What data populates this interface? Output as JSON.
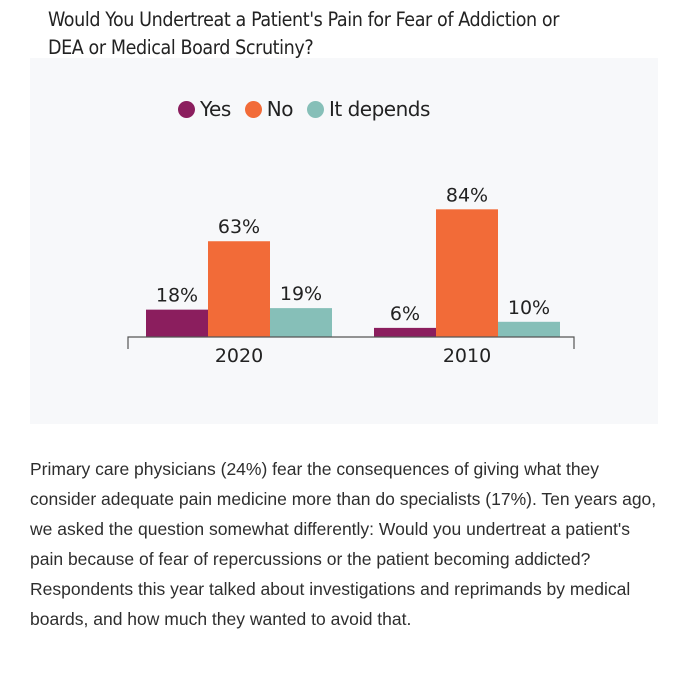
{
  "title": "Would You Undertreat a Patient's Pain for Fear of Addiction or DEA or Medical Board Scrutiny?",
  "title_lines": [
    "Would You Undertreat a Patient's Pain for Fear of Addiction or",
    "DEA or Medical Board Scrutiny?"
  ],
  "colors": {
    "yes": "#8b1e5e",
    "no": "#f26b38",
    "it_depends": "#86bfb8",
    "axis": "#555555"
  },
  "chart_data": {
    "type": "bar",
    "categories": [
      "2020",
      "2010"
    ],
    "series": [
      {
        "name": "Yes",
        "values": [
          18,
          6
        ],
        "labels": [
          "18%",
          "6%"
        ]
      },
      {
        "name": "No",
        "values": [
          63,
          84
        ],
        "labels": [
          "63%",
          "84%"
        ]
      },
      {
        "name": "It depends",
        "values": [
          19,
          10
        ],
        "labels": [
          "19%",
          "10%"
        ]
      }
    ],
    "title": "Would You Undertreat a Patient's Pain for Fear of Addiction or DEA or Medical Board Scrutiny?",
    "xlabel": "",
    "ylabel": "",
    "ylim": [
      0,
      100
    ],
    "grid": false,
    "legend": "top-center"
  },
  "body_text": "Primary care physicians (24%) fear the consequences of giving what they consider adequate pain medicine more than do specialists (17%). Ten years ago, we asked the question somewhat differently: Would you undertreat a patient's pain because of fear of repercussions or the patient becoming addicted? Respondents this year talked about investigations and reprimands by medical boards, and how much they wanted to avoid that."
}
